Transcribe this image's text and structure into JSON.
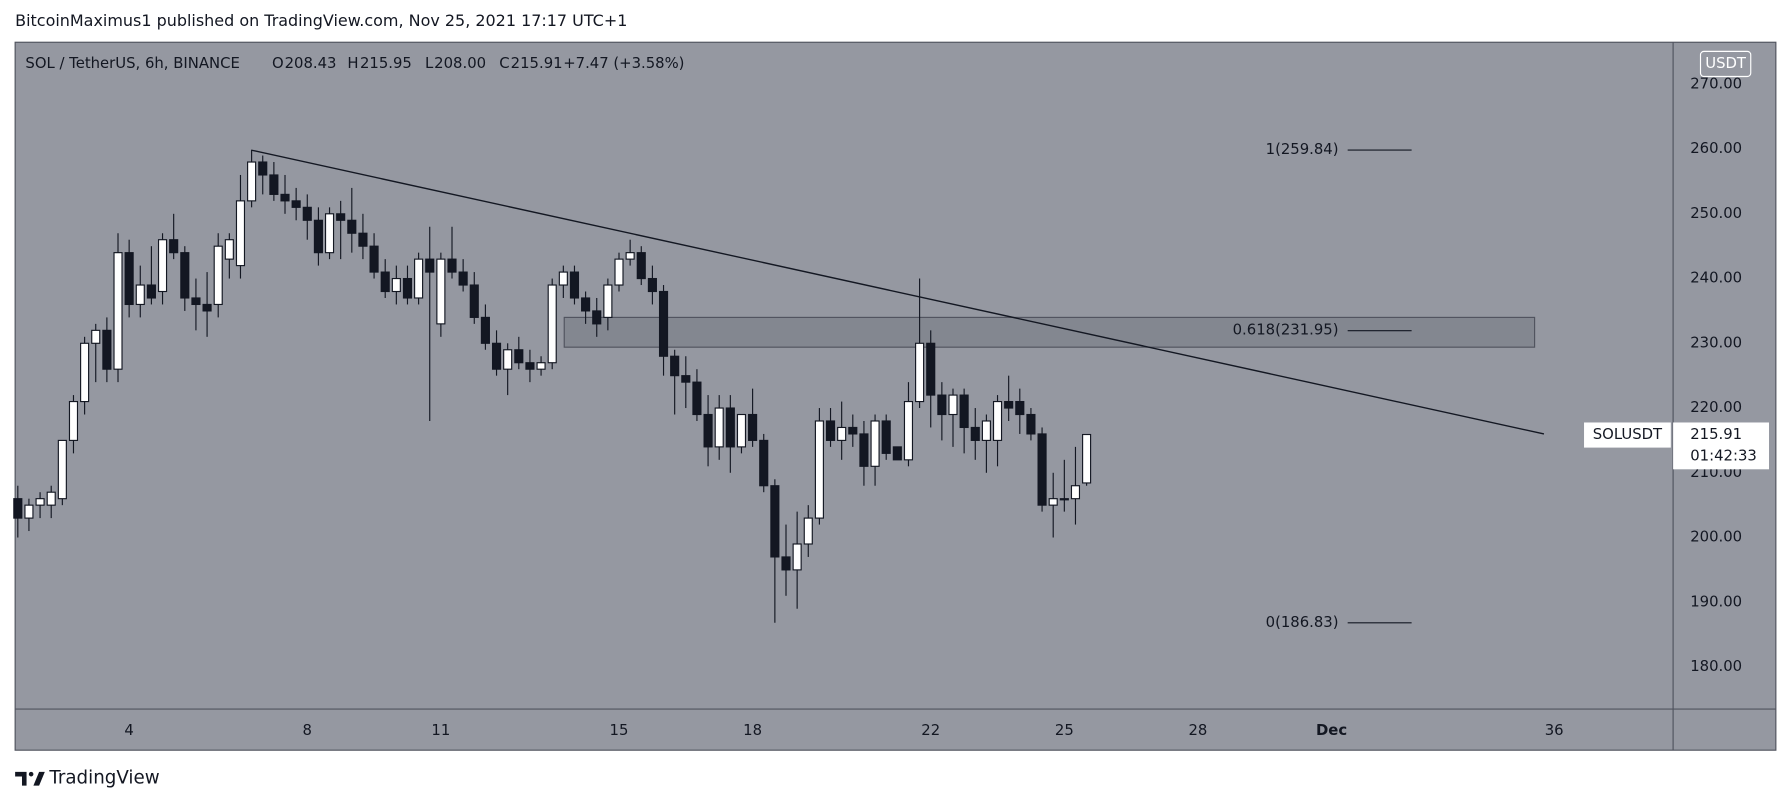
{
  "header": "BitcoinMaximus1 published on TradingView.com, Nov 25, 2021 17:17 UTC+1",
  "footer": "TradingView",
  "chart_data": {
    "type": "candlestick",
    "symbol": "SOL / TetherUS, 6h, BINANCE",
    "currency": "USDT",
    "legend": {
      "fields": [
        "O",
        "H",
        "L",
        "C"
      ],
      "value_labels": [
        "208.43",
        "215.95",
        "208.00",
        "215.91"
      ],
      "change": "+7.47 (+3.58%)"
    },
    "countdown": "01:42:33",
    "up_color": "#ffffff",
    "down_color": "#131722",
    "x": [
      1.5,
      1.75,
      2,
      2.25,
      2.5,
      2.75,
      3,
      3.25,
      3.5,
      3.75,
      4,
      4.25,
      4.5,
      4.75,
      5,
      5.25,
      5.5,
      5.75,
      6,
      6.25,
      6.5,
      6.75,
      7,
      7.25,
      7.5,
      7.75,
      8,
      8.25,
      8.5,
      8.75,
      9,
      9.25,
      9.5,
      9.75,
      10,
      10.25,
      10.5,
      10.75,
      11,
      11.25,
      11.5,
      11.75,
      12,
      12.25,
      12.5,
      12.75,
      13,
      13.25,
      13.5,
      13.75,
      14,
      14.25,
      14.5,
      14.75,
      15,
      15.25,
      15.5,
      15.75,
      16,
      16.25,
      16.5,
      16.75,
      17,
      17.25,
      17.5,
      17.75,
      18,
      18.25,
      18.5,
      18.75,
      19,
      19.25,
      19.5,
      19.75,
      20,
      20.25,
      20.5,
      20.75,
      21,
      21.25,
      21.5,
      21.75,
      22,
      22.25,
      22.5,
      22.75,
      23,
      23.25,
      23.5,
      23.75,
      24,
      24.25,
      24.5,
      24.75,
      25,
      25.25,
      25.5
    ],
    "series": [
      {
        "name": "SOLUSDT",
        "open": [
          206,
          203,
          205,
          205,
          206,
          215,
          221,
          230,
          232,
          226,
          244,
          236,
          239,
          238,
          246,
          244,
          237,
          236,
          236,
          243,
          242,
          252,
          258,
          256,
          253,
          252,
          251,
          249,
          244,
          250,
          249,
          247,
          245,
          241,
          238,
          240,
          237,
          243,
          233,
          243,
          241,
          239,
          234,
          230,
          226,
          229,
          227,
          226,
          227,
          239,
          241,
          237,
          235,
          234,
          239,
          243,
          244,
          240,
          238,
          228,
          225,
          224,
          219,
          214,
          220,
          214,
          219,
          215,
          208,
          197,
          195,
          199,
          203,
          218,
          215,
          217,
          216,
          211,
          218,
          214,
          212,
          221,
          230,
          222,
          219,
          222,
          217,
          215,
          215,
          221,
          221,
          219,
          216,
          205,
          206,
          206,
          208.43
        ],
        "high": [
          208,
          206,
          207,
          208,
          215,
          222,
          231,
          233,
          234,
          247,
          246,
          242,
          245,
          247,
          250,
          245,
          240,
          241,
          247,
          247,
          256,
          259.84,
          259,
          258,
          256,
          254,
          253,
          251,
          251,
          252,
          254,
          250,
          247,
          243,
          242,
          242,
          244,
          248,
          244,
          248,
          243,
          241,
          236,
          232,
          230,
          231,
          229,
          228,
          240,
          242,
          242,
          238,
          237,
          240,
          244,
          246,
          245,
          242,
          239,
          229,
          228,
          226,
          222,
          222,
          222,
          219,
          223,
          216,
          209,
          202,
          204,
          205,
          220,
          220,
          221,
          219,
          218,
          219,
          219,
          214,
          224,
          240,
          232,
          224,
          223,
          223,
          220,
          219,
          222,
          225,
          223,
          220,
          217,
          210,
          212,
          214,
          215.95
        ],
        "low": [
          200,
          201,
          203,
          203,
          205,
          213,
          219,
          224,
          224,
          224,
          234,
          234,
          236,
          236,
          243,
          235,
          232,
          231,
          234,
          240,
          240,
          251,
          253,
          252,
          250,
          249,
          246,
          242,
          243,
          243,
          244,
          243,
          240,
          237,
          236,
          236,
          236,
          218,
          231,
          240,
          238,
          233,
          229,
          225,
          222,
          226,
          224,
          225,
          226,
          237,
          236,
          233,
          231,
          232,
          238,
          242,
          239,
          236,
          225,
          219,
          220,
          218,
          211,
          212,
          210,
          213,
          214,
          207,
          186.83,
          191,
          189,
          197,
          202,
          214,
          212,
          214,
          208,
          208,
          212,
          212,
          211,
          220,
          217,
          215,
          214,
          213,
          212,
          210,
          211,
          218,
          216,
          215,
          204,
          200,
          204,
          202,
          208
        ],
        "close": [
          203,
          205,
          206,
          207,
          215,
          221,
          230,
          232,
          226,
          244,
          236,
          239,
          237,
          246,
          244,
          237,
          236,
          235,
          245,
          246,
          252,
          258,
          256,
          253,
          252,
          251,
          249,
          244,
          250,
          249,
          247,
          245,
          241,
          238,
          240,
          237,
          243,
          241,
          243,
          241,
          239,
          234,
          230,
          226,
          229,
          227,
          226,
          227,
          239,
          241,
          237,
          235,
          233,
          239,
          243,
          244,
          240,
          238,
          228,
          225,
          224,
          219,
          214,
          220,
          214,
          219,
          215,
          208,
          197,
          195,
          199,
          203,
          218,
          215,
          217,
          216,
          211,
          218,
          213,
          212,
          221,
          230,
          222,
          219,
          222,
          217,
          215,
          218,
          221,
          220,
          219,
          216,
          205,
          206,
          206,
          208,
          215.91
        ]
      }
    ],
    "xlim": [
      1.44,
      38.67
    ],
    "ylim": [
      173.5,
      276.5
    ],
    "xticks": [
      4,
      8,
      11,
      15,
      18,
      22,
      25,
      28,
      {
        "value": 31,
        "label": "Dec"
      },
      36
    ],
    "yticks": [
      {
        "value": 180,
        "label": "180.00"
      },
      {
        "value": 190,
        "label": "190.00"
      },
      {
        "value": 200,
        "label": "200.00"
      },
      {
        "value": 210,
        "label": "210.00"
      },
      {
        "value": 220,
        "label": "220.00"
      },
      {
        "value": 230,
        "label": "230.00"
      },
      {
        "value": 240,
        "label": "240.00"
      },
      {
        "value": 250,
        "label": "250.00"
      },
      {
        "value": 260,
        "label": "260.00"
      },
      {
        "value": 270,
        "label": "270.00"
      }
    ],
    "fib_levels": [
      {
        "value": 259.84,
        "label": "1(259.84)"
      },
      {
        "value": 231.95,
        "label": "0.618(231.95)"
      },
      {
        "value": 186.83,
        "label": "0(186.83)"
      }
    ],
    "trendline": {
      "x": [
        6.74,
        35.77
      ],
      "y": [
        259.84,
        216.0
      ]
    },
    "zone": {
      "x": [
        13.77,
        35.56
      ],
      "y": [
        229.4,
        234.0
      ]
    }
  }
}
